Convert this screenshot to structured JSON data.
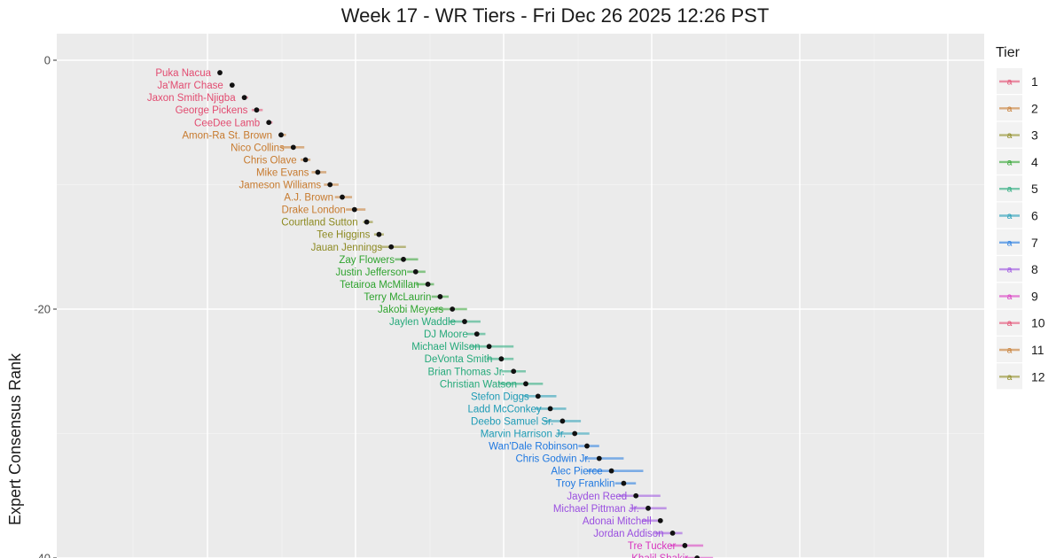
{
  "chart_data": {
    "type": "scatter",
    "title": "Week 17 - WR Tiers - Fri Dec 26 2025 12:26 PST",
    "ylabel": "Expert Consensus Rank",
    "xlabel": "",
    "ylim": [
      -40,
      0
    ],
    "yticks": [
      0,
      -20,
      -40
    ],
    "ytick_labels": [
      "0",
      "-20",
      "-40"
    ],
    "grid": true,
    "legend": {
      "title": "Tier",
      "placement": "right",
      "entries": [
        "1",
        "2",
        "3",
        "4",
        "5",
        "6",
        "7",
        "8",
        "9",
        "10",
        "11",
        "12"
      ],
      "key_glyph": "a"
    },
    "tier_colors": {
      "1": "#E24B70",
      "2": "#C77A2E",
      "3": "#8D8A22",
      "4": "#2FA32F",
      "5": "#25A97A",
      "6": "#1E9BB5",
      "7": "#1F78E0",
      "8": "#9A4FE0",
      "9": "#D836C0",
      "10": "#E24B70",
      "11": "#C77A2E",
      "12": "#8D8A22"
    },
    "points": [
      {
        "name": "Puka Nacua",
        "tier": 1,
        "x": 1,
        "y": -1,
        "lo": 1,
        "hi": 1
      },
      {
        "name": "Ja'Marr Chase",
        "tier": 1,
        "x": 2,
        "y": -2,
        "lo": 2,
        "hi": 2
      },
      {
        "name": "Jaxon Smith-Njigba",
        "tier": 1,
        "x": 3,
        "y": -3,
        "lo": 2.8,
        "hi": 3.3
      },
      {
        "name": "George Pickens",
        "tier": 1,
        "x": 4,
        "y": -4,
        "lo": 3.6,
        "hi": 4.5
      },
      {
        "name": "CeeDee Lamb",
        "tier": 1,
        "x": 5,
        "y": -5,
        "lo": 4.8,
        "hi": 5.3
      },
      {
        "name": "Amon-Ra St. Brown",
        "tier": 2,
        "x": 6,
        "y": -6,
        "lo": 5.8,
        "hi": 6.4
      },
      {
        "name": "Nico Collins",
        "tier": 2,
        "x": 7,
        "y": -7,
        "lo": 6.0,
        "hi": 7.9
      },
      {
        "name": "Chris Olave",
        "tier": 2,
        "x": 8,
        "y": -8,
        "lo": 7.6,
        "hi": 8.4
      },
      {
        "name": "Mike Evans",
        "tier": 2,
        "x": 9,
        "y": -9,
        "lo": 8.5,
        "hi": 9.7
      },
      {
        "name": "Jameson Williams",
        "tier": 2,
        "x": 10,
        "y": -10,
        "lo": 9.5,
        "hi": 10.7
      },
      {
        "name": "A.J. Brown",
        "tier": 2,
        "x": 11,
        "y": -11,
        "lo": 10.4,
        "hi": 11.8
      },
      {
        "name": "Drake London",
        "tier": 2,
        "x": 12,
        "y": -12,
        "lo": 11.3,
        "hi": 12.9
      },
      {
        "name": "Courtland Sutton",
        "tier": 3,
        "x": 13,
        "y": -13,
        "lo": 12.7,
        "hi": 13.5
      },
      {
        "name": "Tee Higgins",
        "tier": 3,
        "x": 14,
        "y": -14,
        "lo": 13.6,
        "hi": 14.4
      },
      {
        "name": "Jauan Jennings",
        "tier": 3,
        "x": 15,
        "y": -15,
        "lo": 14.1,
        "hi": 16.2
      },
      {
        "name": "Zay Flowers",
        "tier": 4,
        "x": 16,
        "y": -16,
        "lo": 15.3,
        "hi": 17.2
      },
      {
        "name": "Justin Jefferson",
        "tier": 4,
        "x": 17,
        "y": -17,
        "lo": 16.3,
        "hi": 17.8
      },
      {
        "name": "Tetairoa McMillan",
        "tier": 4,
        "x": 18,
        "y": -18,
        "lo": 17.0,
        "hi": 18.5
      },
      {
        "name": "Terry McLaurin",
        "tier": 4,
        "x": 19,
        "y": -19,
        "lo": 18.3,
        "hi": 19.7
      },
      {
        "name": "Jakobi Meyers",
        "tier": 4,
        "x": 20,
        "y": -20,
        "lo": 18.5,
        "hi": 21.2
      },
      {
        "name": "Jaylen Waddle",
        "tier": 5,
        "x": 21,
        "y": -21,
        "lo": 19.7,
        "hi": 22.3
      },
      {
        "name": "DJ Moore",
        "tier": 5,
        "x": 22,
        "y": -22,
        "lo": 21.2,
        "hi": 22.7
      },
      {
        "name": "Michael Wilson",
        "tier": 5,
        "x": 23,
        "y": -23,
        "lo": 21.4,
        "hi": 25.0
      },
      {
        "name": "DeVonta Smith",
        "tier": 5,
        "x": 24,
        "y": -24,
        "lo": 22.8,
        "hi": 25.0
      },
      {
        "name": "Brian Thomas Jr.",
        "tier": 5,
        "x": 25,
        "y": -25,
        "lo": 24.0,
        "hi": 26.0
      },
      {
        "name": "Christian Watson",
        "tier": 5,
        "x": 26,
        "y": -26,
        "lo": 23.8,
        "hi": 27.4
      },
      {
        "name": "Stefon Diggs",
        "tier": 6,
        "x": 27,
        "y": -27,
        "lo": 25.8,
        "hi": 28.5
      },
      {
        "name": "Ladd McConkey",
        "tier": 6,
        "x": 28,
        "y": -28,
        "lo": 26.8,
        "hi": 29.3
      },
      {
        "name": "Deebo Samuel Sr.",
        "tier": 6,
        "x": 29,
        "y": -29,
        "lo": 27.5,
        "hi": 30.5
      },
      {
        "name": "Marvin Harrison Jr.",
        "tier": 6,
        "x": 30,
        "y": -30,
        "lo": 28.5,
        "hi": 31.2
      },
      {
        "name": "Wan'Dale Robinson",
        "tier": 7,
        "x": 31,
        "y": -31,
        "lo": 30.3,
        "hi": 32.0
      },
      {
        "name": "Chris Godwin Jr.",
        "tier": 7,
        "x": 32,
        "y": -32,
        "lo": 30.8,
        "hi": 34.0
      },
      {
        "name": "Alec Pierce",
        "tier": 7,
        "x": 33,
        "y": -33,
        "lo": 31.0,
        "hi": 35.6
      },
      {
        "name": "Troy Franklin",
        "tier": 7,
        "x": 34,
        "y": -34,
        "lo": 33.3,
        "hi": 35.0
      },
      {
        "name": "Jayden Reed",
        "tier": 8,
        "x": 35,
        "y": -35,
        "lo": 33.6,
        "hi": 37.0
      },
      {
        "name": "Michael Pittman Jr.",
        "tier": 8,
        "x": 36,
        "y": -36,
        "lo": 34.5,
        "hi": 37.5
      },
      {
        "name": "Adonai Mitchell",
        "tier": 8,
        "x": 37,
        "y": -37,
        "lo": 35.5,
        "hi": 37.2
      },
      {
        "name": "Jordan Addison",
        "tier": 8,
        "x": 38,
        "y": -38,
        "lo": 36.5,
        "hi": 38.8
      },
      {
        "name": "Tre Tucker",
        "tier": 9,
        "x": 39,
        "y": -39,
        "lo": 37.8,
        "hi": 40.5
      },
      {
        "name": "Khalil Shakir",
        "tier": 9,
        "x": 40,
        "y": -40,
        "lo": 39.0,
        "hi": 41.3
      }
    ]
  }
}
